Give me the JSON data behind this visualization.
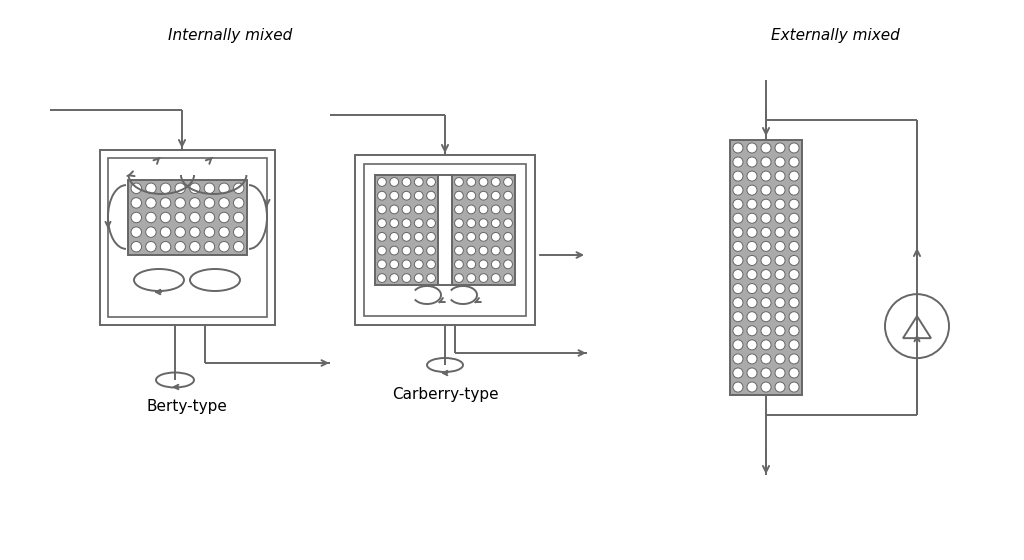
{
  "bg_color": "#ffffff",
  "line_color": "#666666",
  "title_internally": "Internally mixed",
  "title_externally": "Externally mixed",
  "label_berty": "Berty-type",
  "label_carberry": "Carberry-type",
  "font_size_title": 11,
  "font_size_label": 11,
  "catalyst_bg": "#bbbbbb",
  "lw": 1.4
}
